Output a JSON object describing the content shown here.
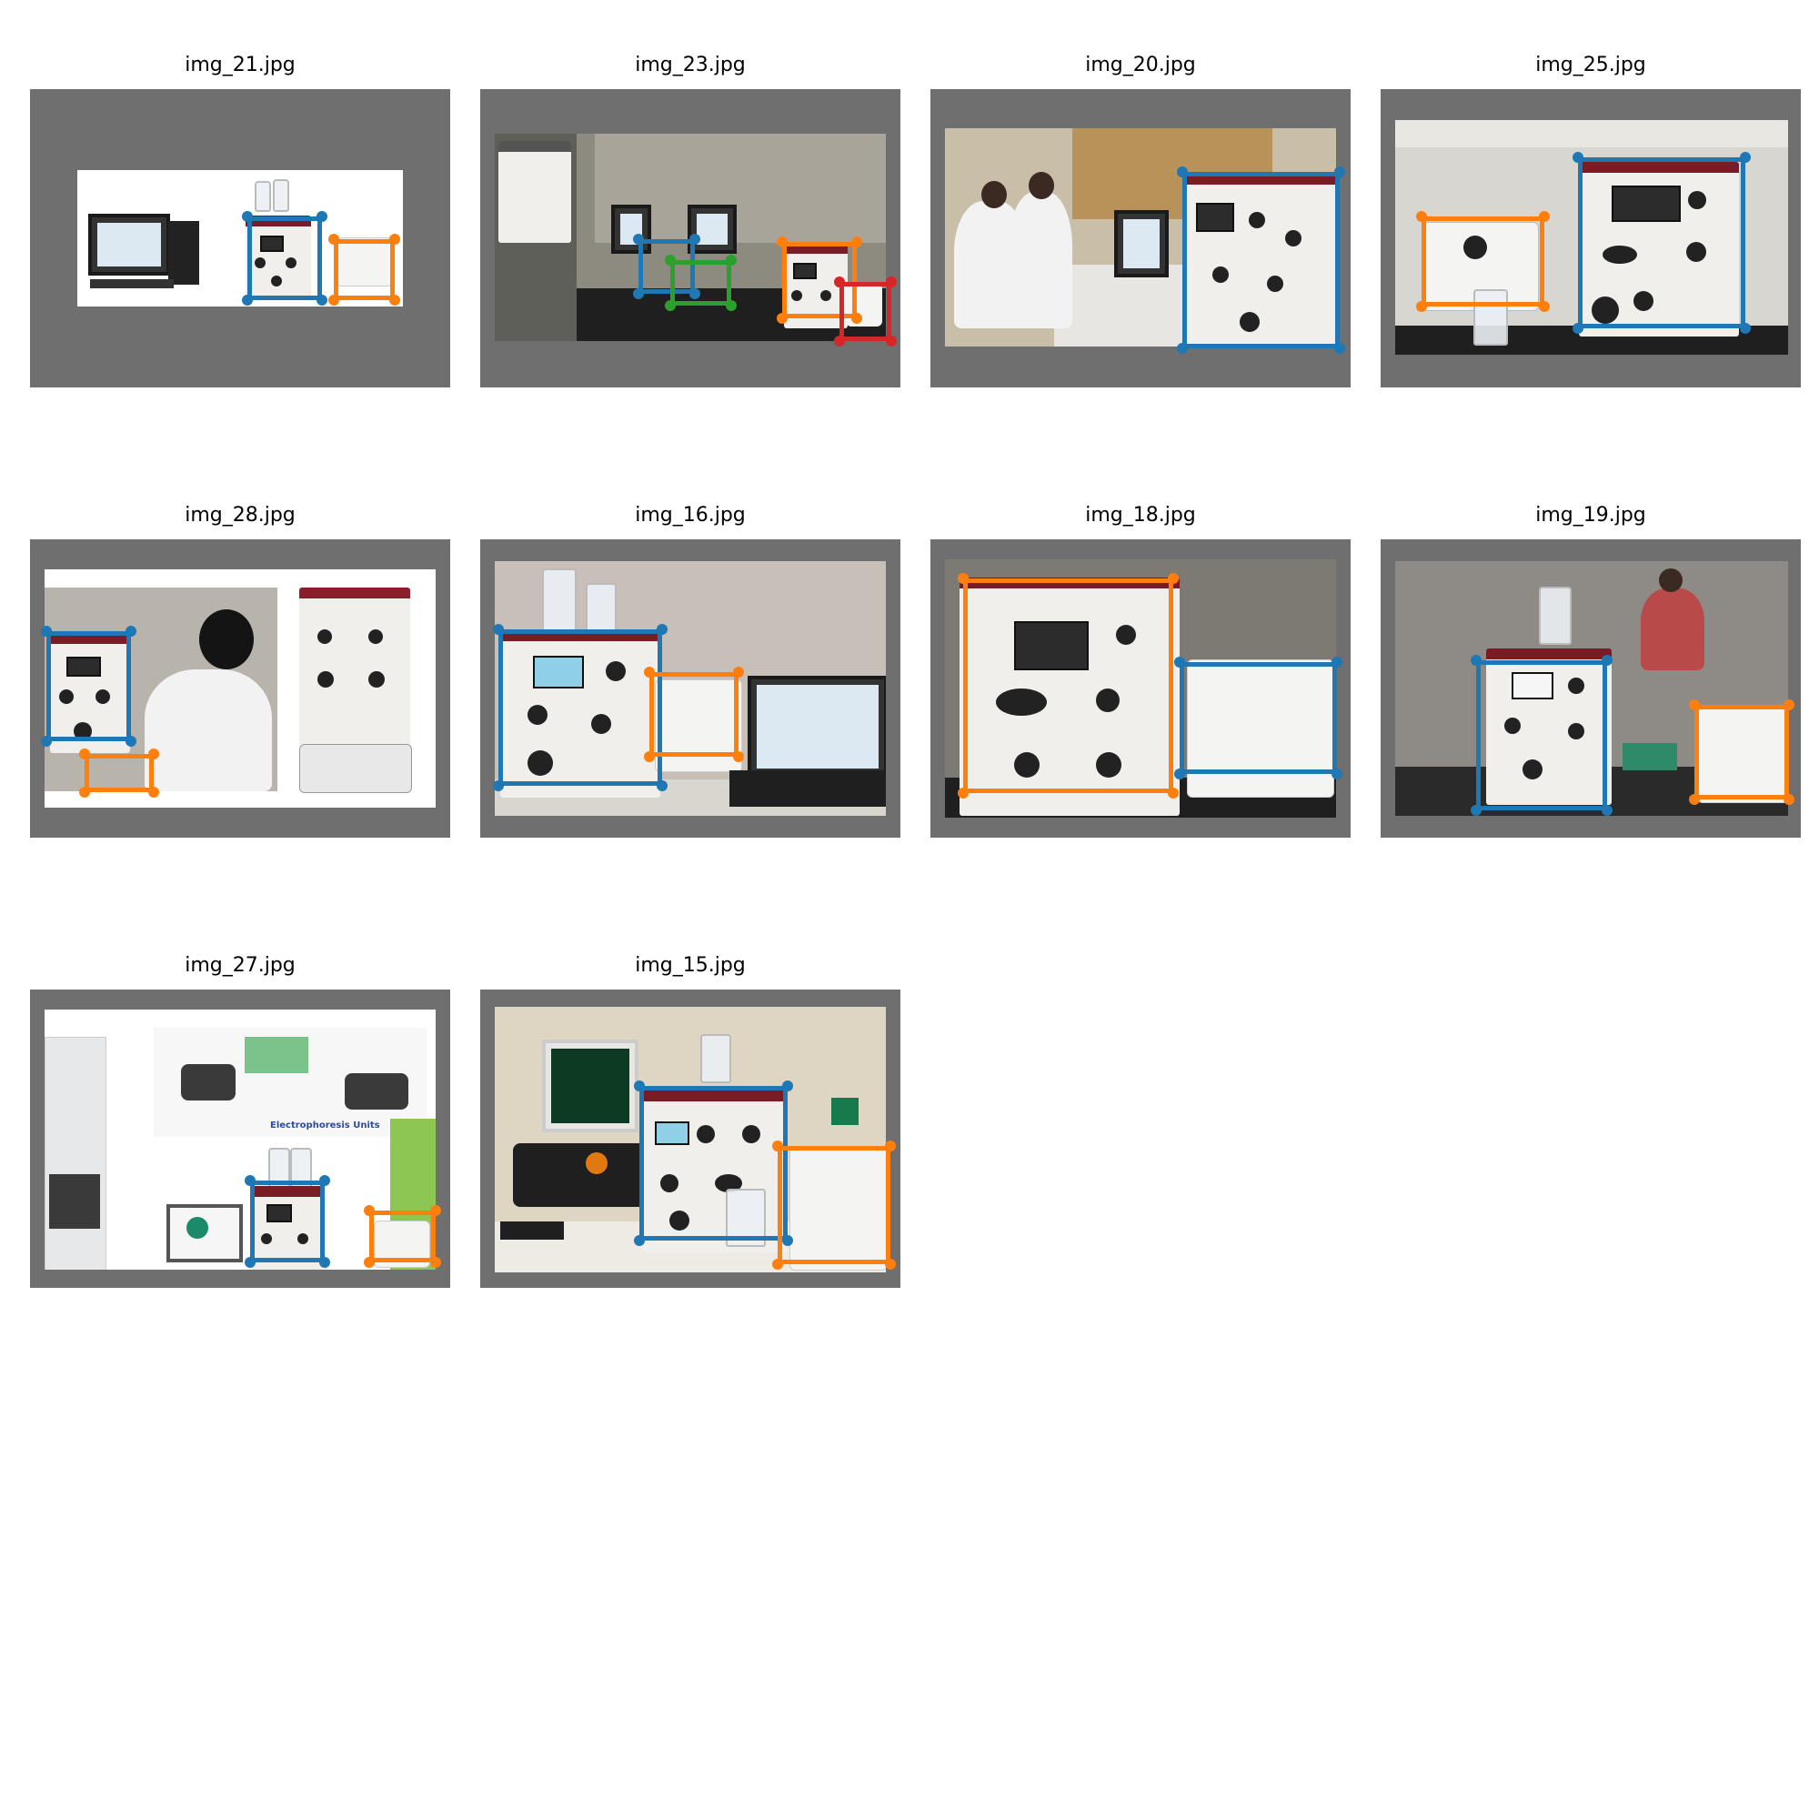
{
  "figure": {
    "panels": [
      {
        "filename": "img_21.jpg",
        "boxes": [
          {
            "color": "#1f77b4"
          },
          {
            "color": "#ff7f0e"
          }
        ]
      },
      {
        "filename": "img_23.jpg",
        "boxes": [
          {
            "color": "#1f77b4"
          },
          {
            "color": "#2ca02c"
          },
          {
            "color": "#ff7f0e"
          },
          {
            "color": "#d62728"
          }
        ]
      },
      {
        "filename": "img_20.jpg",
        "boxes": [
          {
            "color": "#1f77b4"
          }
        ]
      },
      {
        "filename": "img_25.jpg",
        "boxes": [
          {
            "color": "#ff7f0e"
          },
          {
            "color": "#1f77b4"
          }
        ]
      },
      {
        "filename": "img_28.jpg",
        "boxes": [
          {
            "color": "#1f77b4"
          },
          {
            "color": "#ff7f0e"
          }
        ]
      },
      {
        "filename": "img_16.jpg",
        "boxes": [
          {
            "color": "#1f77b4"
          },
          {
            "color": "#ff7f0e"
          }
        ]
      },
      {
        "filename": "img_18.jpg",
        "boxes": [
          {
            "color": "#ff7f0e"
          },
          {
            "color": "#1f77b4"
          }
        ]
      },
      {
        "filename": "img_19.jpg",
        "boxes": [
          {
            "color": "#1f77b4"
          },
          {
            "color": "#ff7f0e"
          }
        ]
      },
      {
        "filename": "img_27.jpg",
        "boxes": [
          {
            "color": "#1f77b4"
          },
          {
            "color": "#ff7f0e"
          }
        ]
      },
      {
        "filename": "img_15.jpg",
        "boxes": [
          {
            "color": "#1f77b4"
          },
          {
            "color": "#ff7f0e"
          }
        ]
      }
    ],
    "texts": {
      "electrophoresis_caption": "Electrophoresis Units"
    }
  }
}
